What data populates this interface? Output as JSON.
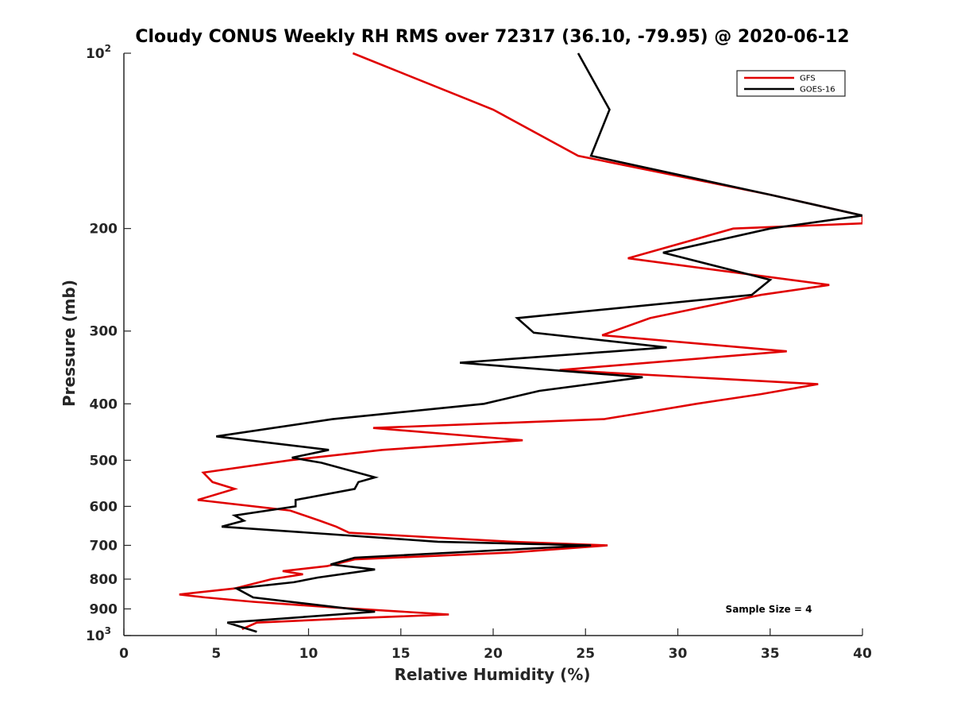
{
  "chart_data": {
    "type": "line",
    "title": "Cloudy CONUS Weekly RH RMS over 72317 (36.10, -79.95) @ 2020-06-12",
    "xlabel": "Relative Humidity (%)",
    "ylabel": "Pressure (mb)",
    "xlim": [
      0,
      40
    ],
    "ylim": [
      1000,
      100
    ],
    "yscale": "log",
    "y_reversed": true,
    "grid": false,
    "legend_position": "top-right",
    "x_ticks": [
      {
        "value": 0,
        "label": "0"
      },
      {
        "value": 5,
        "label": "5"
      },
      {
        "value": 10,
        "label": "10"
      },
      {
        "value": 15,
        "label": "15"
      },
      {
        "value": 20,
        "label": "20"
      },
      {
        "value": 25,
        "label": "25"
      },
      {
        "value": 30,
        "label": "30"
      },
      {
        "value": 35,
        "label": "35"
      },
      {
        "value": 40,
        "label": "40"
      }
    ],
    "y_ticks": [
      {
        "value": 100,
        "base": "10",
        "exp": "2"
      },
      {
        "value": 200,
        "base": "200",
        "exp": ""
      },
      {
        "value": 300,
        "base": "300",
        "exp": ""
      },
      {
        "value": 400,
        "base": "400",
        "exp": ""
      },
      {
        "value": 500,
        "base": "500",
        "exp": ""
      },
      {
        "value": 600,
        "base": "600",
        "exp": ""
      },
      {
        "value": 700,
        "base": "700",
        "exp": ""
      },
      {
        "value": 800,
        "base": "800",
        "exp": ""
      },
      {
        "value": 900,
        "base": "900",
        "exp": ""
      },
      {
        "value": 1000,
        "base": "10",
        "exp": "3"
      }
    ],
    "series": [
      {
        "name": "GFS",
        "color": "#e00000",
        "points": [
          [
            12.4,
            100
          ],
          [
            20,
            125
          ],
          [
            24.6,
            150
          ],
          [
            35,
            175
          ],
          [
            40,
            190
          ],
          [
            40,
            196
          ],
          [
            33,
            200
          ],
          [
            27.3,
            225
          ],
          [
            38.2,
            250
          ],
          [
            34.5,
            260
          ],
          [
            28.5,
            285
          ],
          [
            25.9,
            305
          ],
          [
            35.9,
            325
          ],
          [
            23.6,
            350
          ],
          [
            37.6,
            370
          ],
          [
            34.5,
            385
          ],
          [
            31,
            400
          ],
          [
            28,
            415
          ],
          [
            26,
            425
          ],
          [
            13.5,
            440
          ],
          [
            21.6,
            462
          ],
          [
            14,
            480
          ],
          [
            9,
            500
          ],
          [
            4.3,
            525
          ],
          [
            4.8,
            545
          ],
          [
            6,
            560
          ],
          [
            4,
            585
          ],
          [
            9,
            610
          ],
          [
            10.6,
            635
          ],
          [
            11.5,
            650
          ],
          [
            12.2,
            666
          ],
          [
            21,
            690
          ],
          [
            26.2,
            700
          ],
          [
            21,
            720
          ],
          [
            12.5,
            740
          ],
          [
            11,
            760
          ],
          [
            8.6,
            775
          ],
          [
            9.7,
            785
          ],
          [
            8,
            800
          ],
          [
            6,
            830
          ],
          [
            3,
            850
          ],
          [
            4.4,
            860
          ],
          [
            7,
            875
          ],
          [
            11.4,
            895
          ],
          [
            17.6,
            920
          ],
          [
            12,
            935
          ],
          [
            7.2,
            950
          ],
          [
            6.4,
            975
          ]
        ]
      },
      {
        "name": "GOES-16",
        "color": "#000000",
        "points": [
          [
            24.6,
            100
          ],
          [
            26.3,
            125
          ],
          [
            25.3,
            150
          ],
          [
            35,
            175
          ],
          [
            40,
            190
          ],
          [
            35,
            200
          ],
          [
            29.2,
            220
          ],
          [
            35,
            245
          ],
          [
            34,
            260
          ],
          [
            21.3,
            285
          ],
          [
            22.2,
            302
          ],
          [
            29.4,
            320
          ],
          [
            18.2,
            340
          ],
          [
            28.1,
            360
          ],
          [
            22.5,
            380
          ],
          [
            19.5,
            400
          ],
          [
            11.3,
            425
          ],
          [
            5,
            455
          ],
          [
            11.1,
            480
          ],
          [
            9.1,
            495
          ],
          [
            10.7,
            505
          ],
          [
            13.6,
            535
          ],
          [
            12.7,
            545
          ],
          [
            12.5,
            560
          ],
          [
            9.3,
            585
          ],
          [
            9.3,
            600
          ],
          [
            6,
            622
          ],
          [
            6.5,
            635
          ],
          [
            5.3,
            650
          ],
          [
            17,
            690
          ],
          [
            25.3,
            700
          ],
          [
            12.5,
            735
          ],
          [
            11.2,
            755
          ],
          [
            13.6,
            770
          ],
          [
            10.5,
            795
          ],
          [
            9.2,
            810
          ],
          [
            6.1,
            830
          ],
          [
            7,
            860
          ],
          [
            13.6,
            910
          ],
          [
            5.6,
            950
          ],
          [
            7.2,
            985
          ]
        ]
      }
    ],
    "legend": [
      "GFS",
      "GOES-16"
    ],
    "annotation": "Sample Size = 4"
  }
}
